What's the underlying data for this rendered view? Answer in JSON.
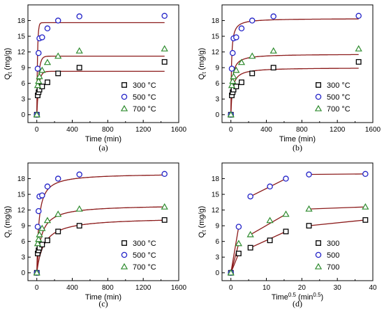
{
  "colors": {
    "fit_line": "#8b1a1a",
    "s300": "#000000",
    "s500": "#2323c8",
    "s700": "#2e8b2e",
    "marker_fill": "#ffffff"
  },
  "chart_data": [
    {
      "type": "scatter",
      "caption": "(a)",
      "xlabel": "Time (min)",
      "ylabel": "Q",
      "ylabel_sub": "t",
      "ylabel_unit": " (mg/g)",
      "xlim": [
        -100,
        1600
      ],
      "ylim": [
        -1.5,
        21
      ],
      "xticks": [
        "0",
        "400",
        "800",
        "1200",
        "1600"
      ],
      "xtick_values": [
        0,
        400,
        800,
        1200,
        1600
      ],
      "yticks": [
        "0",
        "3",
        "6",
        "9",
        "12",
        "15",
        "18"
      ],
      "ytick_values": [
        0,
        3,
        6,
        9,
        12,
        15,
        18
      ],
      "legend_position": "bottom-right",
      "series": [
        {
          "name": "300 °C",
          "key": "s300",
          "marker": "square",
          "x": [
            0,
            10,
            20,
            30,
            60,
            120,
            240,
            480,
            1440
          ],
          "y": [
            0,
            3.7,
            4.3,
            4.8,
            5.4,
            6.2,
            7.9,
            9.0,
            10.1
          ],
          "fit": {
            "kind": "pfo",
            "qe": 8.3,
            "k": 0.045
          }
        },
        {
          "name": "500 °C",
          "key": "s500",
          "marker": "circle",
          "x": [
            0,
            10,
            20,
            30,
            60,
            120,
            240,
            480,
            1440
          ],
          "y": [
            0,
            8.8,
            11.8,
            14.6,
            14.8,
            16.5,
            18.0,
            18.8,
            18.9
          ],
          "fit": {
            "kind": "pfo",
            "qe": 17.6,
            "k": 0.12
          }
        },
        {
          "name": "700 °C",
          "key": "s700",
          "marker": "triangle",
          "x": [
            0,
            10,
            20,
            30,
            60,
            120,
            240,
            480,
            1440
          ],
          "y": [
            0,
            5.6,
            6.4,
            7.3,
            8.5,
            10.0,
            11.2,
            12.2,
            12.6
          ],
          "fit": {
            "kind": "pfo",
            "qe": 11.2,
            "k": 0.05
          }
        }
      ]
    },
    {
      "type": "scatter",
      "caption": "(b)",
      "xlabel": "Time (min)",
      "ylabel": "Q",
      "ylabel_sub": "t",
      "ylabel_unit": " (mg/g)",
      "xlim": [
        -100,
        1600
      ],
      "ylim": [
        -1.5,
        21
      ],
      "xticks": [
        "0",
        "400",
        "800",
        "1200",
        "1600"
      ],
      "xtick_values": [
        0,
        400,
        800,
        1200,
        1600
      ],
      "yticks": [
        "0",
        "3",
        "6",
        "9",
        "12",
        "15",
        "18"
      ],
      "ytick_values": [
        0,
        3,
        6,
        9,
        12,
        15,
        18
      ],
      "legend_position": "bottom-right",
      "series": [
        {
          "name": "300 °C",
          "key": "s300",
          "marker": "square",
          "x": [
            0,
            10,
            20,
            30,
            60,
            120,
            240,
            480,
            1440
          ],
          "y": [
            0,
            3.7,
            4.3,
            4.8,
            5.4,
            6.2,
            7.9,
            9.0,
            10.1
          ],
          "fit": {
            "kind": "pso",
            "qe": 9.0,
            "k": 0.006
          }
        },
        {
          "name": "500 °C",
          "key": "s500",
          "marker": "circle",
          "x": [
            0,
            10,
            20,
            30,
            60,
            120,
            240,
            480,
            1440
          ],
          "y": [
            0,
            8.8,
            11.8,
            14.6,
            14.8,
            16.5,
            18.0,
            18.8,
            18.9
          ],
          "fit": {
            "kind": "pso",
            "qe": 18.4,
            "k": 0.008
          }
        },
        {
          "name": "700 °C",
          "key": "s700",
          "marker": "triangle",
          "x": [
            0,
            10,
            20,
            30,
            60,
            120,
            240,
            480,
            1440
          ],
          "y": [
            0,
            5.6,
            6.4,
            7.3,
            8.5,
            10.0,
            11.2,
            12.2,
            12.6
          ],
          "fit": {
            "kind": "pso",
            "qe": 11.6,
            "k": 0.0065
          }
        }
      ]
    },
    {
      "type": "scatter",
      "caption": "(c)",
      "xlabel": "Time (min)",
      "ylabel": "Q",
      "ylabel_sub": "t",
      "ylabel_unit": " (mg/g)",
      "xlim": [
        -100,
        1600
      ],
      "ylim": [
        -1.5,
        21
      ],
      "xticks": [
        "0",
        "400",
        "800",
        "1200",
        "1600"
      ],
      "xtick_values": [
        0,
        400,
        800,
        1200,
        1600
      ],
      "yticks": [
        "0",
        "3",
        "6",
        "9",
        "12",
        "15",
        "18"
      ],
      "ytick_values": [
        0,
        3,
        6,
        9,
        12,
        15,
        18
      ],
      "legend_position": "bottom-right",
      "series": [
        {
          "name": "300 °C",
          "key": "s300",
          "marker": "square",
          "x": [
            0,
            10,
            20,
            30,
            60,
            120,
            240,
            480,
            1440
          ],
          "y": [
            0,
            3.7,
            4.3,
            4.8,
            5.4,
            6.2,
            7.9,
            9.0,
            10.1
          ],
          "fit": {
            "kind": "pso",
            "qe": 10.6,
            "k": 0.0012
          }
        },
        {
          "name": "500 °C",
          "key": "s500",
          "marker": "circle",
          "x": [
            0,
            10,
            20,
            30,
            60,
            120,
            240,
            480,
            1440
          ],
          "y": [
            0,
            8.8,
            11.8,
            14.6,
            14.8,
            16.5,
            18.0,
            18.8,
            18.9
          ],
          "fit": {
            "kind": "pso",
            "qe": 19.0,
            "k": 0.0022
          }
        },
        {
          "name": "700 °C",
          "key": "s700",
          "marker": "triangle",
          "x": [
            0,
            10,
            20,
            30,
            60,
            120,
            240,
            480,
            1440
          ],
          "y": [
            0,
            5.6,
            6.4,
            7.3,
            8.5,
            10.0,
            11.2,
            12.2,
            12.6
          ],
          "fit": {
            "kind": "pso",
            "qe": 13.0,
            "k": 0.0017
          }
        }
      ]
    },
    {
      "type": "scatter",
      "caption": "(d)",
      "xlabel": "Time",
      "xlabel_sup": "0.5",
      "xlabel_unit": " (min",
      "xlabel_unit_sup": "0.5",
      "xlabel_close": ")",
      "ylabel": "Q",
      "ylabel_sub": "t",
      "ylabel_unit": " (mg/g)",
      "xlim": [
        -2.5,
        40
      ],
      "ylim": [
        -1.5,
        21
      ],
      "xticks": [
        "0",
        "10",
        "20",
        "30",
        "40"
      ],
      "xtick_values": [
        0,
        10,
        20,
        30,
        40
      ],
      "yticks": [
        "0",
        "3",
        "6",
        "9",
        "12",
        "15",
        "18"
      ],
      "ytick_values": [
        0,
        3,
        6,
        9,
        12,
        15,
        18
      ],
      "legend_position": "bottom-right",
      "series": [
        {
          "name": "300",
          "key": "s300",
          "marker": "square",
          "x": [
            0,
            2.2,
            5.5,
            11.0,
            15.5,
            22.0,
            37.9
          ],
          "y": [
            0,
            3.7,
            4.8,
            6.2,
            7.9,
            9.0,
            10.1
          ],
          "segments": [
            [
              [
                0,
                0
              ],
              [
                2.2,
                3.7
              ]
            ],
            [
              [
                5.5,
                4.8
              ],
              [
                15.5,
                7.9
              ]
            ],
            [
              [
                22.0,
                9.0
              ],
              [
                37.9,
                10.1
              ]
            ]
          ]
        },
        {
          "name": "500",
          "key": "s500",
          "marker": "circle",
          "x": [
            0,
            2.2,
            5.5,
            11.0,
            15.5,
            22.0,
            37.9
          ],
          "y": [
            0,
            8.8,
            14.6,
            16.5,
            18.0,
            18.8,
            18.9
          ],
          "segments": [
            [
              [
                0,
                0
              ],
              [
                2.2,
                8.8
              ]
            ],
            [
              [
                5.5,
                14.6
              ],
              [
                15.5,
                18.0
              ]
            ],
            [
              [
                22.0,
                18.8
              ],
              [
                37.9,
                18.9
              ]
            ]
          ]
        },
        {
          "name": "700",
          "key": "s700",
          "marker": "triangle",
          "x": [
            0,
            2.2,
            5.5,
            11.0,
            15.5,
            22.0,
            37.9
          ],
          "y": [
            0,
            5.6,
            7.3,
            10.0,
            11.2,
            12.2,
            12.6
          ],
          "segments": [
            [
              [
                0,
                0
              ],
              [
                2.2,
                5.6
              ]
            ],
            [
              [
                5.5,
                7.3
              ],
              [
                15.5,
                11.2
              ]
            ],
            [
              [
                22.0,
                12.2
              ],
              [
                37.9,
                12.6
              ]
            ]
          ]
        }
      ]
    }
  ]
}
